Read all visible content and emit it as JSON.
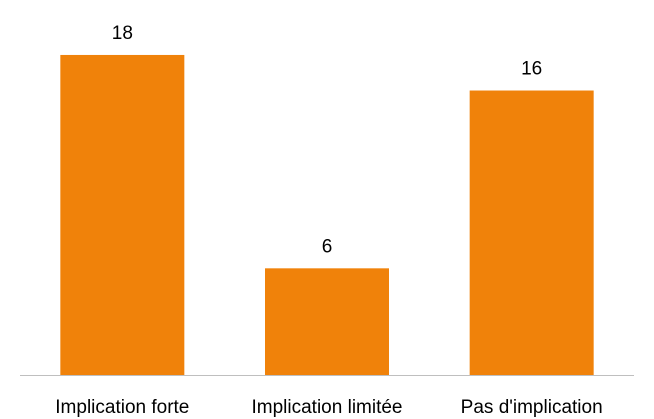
{
  "chart_data": {
    "type": "bar",
    "title": "",
    "xlabel": "",
    "ylabel": "",
    "categories": [
      "Implication forte",
      "Implication limitée",
      "Pas d'implication"
    ],
    "values": [
      18,
      6,
      16
    ],
    "ylim": [
      0,
      18
    ],
    "grid": false,
    "legend": "none",
    "y_axis_visible": false,
    "data_labels": true,
    "colors": {
      "bar": "#F0820A",
      "axis": "#BFBFBF",
      "text": "#000000"
    }
  }
}
